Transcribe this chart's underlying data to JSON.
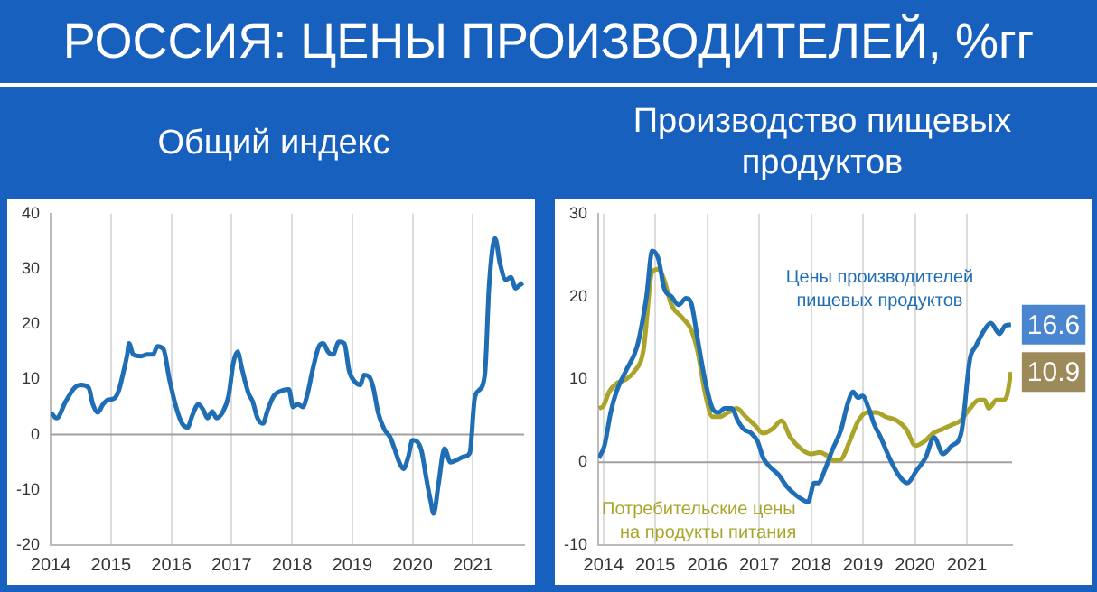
{
  "chart_data": [
    {
      "type": "line",
      "title": "РОССИЯ: ЦЕНЫ ПРОИЗВОДИТЕЛЕЙ, %гг",
      "subtitle": "Общий индекс",
      "xlim": [
        2014,
        2021.85
      ],
      "xticks": [
        2014,
        2015,
        2016,
        2017,
        2018,
        2019,
        2020,
        2021
      ],
      "ylim": [
        -20,
        40
      ],
      "yticks": [
        -20,
        -10,
        0,
        10,
        20,
        30,
        40
      ],
      "grid": "x",
      "marker": "none",
      "ref_lines": [
        {
          "axis": "y",
          "value": 0,
          "color": "#a0a0a0"
        }
      ],
      "series": [
        {
          "color": "#1f6db5",
          "x": [
            2014,
            2014.1,
            2014.25,
            2014.4,
            2014.5,
            2014.63,
            2014.7,
            2014.78,
            2014.87,
            2014.95,
            2015.05,
            2015.13,
            2015.2,
            2015.27,
            2015.3,
            2015.37,
            2015.5,
            2015.6,
            2015.7,
            2015.77,
            2015.87,
            2015.97,
            2016.08,
            2016.18,
            2016.27,
            2016.35,
            2016.45,
            2016.53,
            2016.6,
            2016.68,
            2016.75,
            2016.85,
            2016.95,
            2017.03,
            2017.1,
            2017.17,
            2017.28,
            2017.35,
            2017.43,
            2017.52,
            2017.6,
            2017.7,
            2017.85,
            2017.95,
            2018.02,
            2018.1,
            2018.18,
            2018.25,
            2018.35,
            2018.45,
            2018.52,
            2018.6,
            2018.68,
            2018.78,
            2018.87,
            2018.95,
            2019.05,
            2019.13,
            2019.2,
            2019.28,
            2019.35,
            2019.43,
            2019.53,
            2019.63,
            2019.7,
            2019.78,
            2019.85,
            2019.93,
            2020,
            2020.07,
            2020.15,
            2020.23,
            2020.3,
            2020.35,
            2020.43,
            2020.53,
            2020.63,
            2020.75,
            2020.85,
            2020.95,
            2021.03,
            2021.1,
            2021.2,
            2021.27,
            2021.37,
            2021.45,
            2021.55,
            2021.63,
            2021.71,
            2021.77,
            2021.83
          ],
          "values": [
            4,
            3,
            6,
            8.5,
            9,
            8.5,
            5.5,
            4,
            5.5,
            6.3,
            6.5,
            8,
            11,
            14.5,
            16.5,
            14.5,
            14.2,
            14.5,
            14.5,
            16,
            15.5,
            10,
            5,
            2,
            1.3,
            3.5,
            5.5,
            4.5,
            3,
            4.2,
            3,
            4,
            7,
            13,
            15,
            12,
            7.5,
            6,
            3,
            2,
            4.5,
            7,
            8,
            8.2,
            5,
            5.5,
            5,
            7,
            12,
            16,
            16.5,
            15,
            14.5,
            16.8,
            16.5,
            11.5,
            9.5,
            9,
            10.8,
            10.5,
            8.5,
            4,
            1,
            -0.5,
            -2.5,
            -5,
            -6.2,
            -4,
            -1,
            -1.2,
            -3,
            -8,
            -12,
            -14.3,
            -9,
            -2.5,
            -5,
            -4.5,
            -4,
            -3.3,
            6.5,
            8,
            11,
            27,
            35.5,
            31,
            28,
            28.5,
            26.5,
            27,
            27.5
          ]
        }
      ]
    },
    {
      "type": "line",
      "title": "Производство пищевых продуктов",
      "xlim": [
        2013.9,
        2021.87
      ],
      "xticks": [
        2014,
        2015,
        2016,
        2017,
        2018,
        2019,
        2020,
        2021
      ],
      "ylim": [
        -10,
        30
      ],
      "yticks": [
        -10,
        0,
        10,
        20,
        30
      ],
      "grid": "x",
      "marker": "none",
      "ref_lines": [
        {
          "axis": "y",
          "value": 0,
          "color": "#a0a0a0"
        }
      ],
      "annotations": [
        {
          "text": "16.6",
          "x": 2021.85,
          "y": 16.6
        },
        {
          "text": "10.9",
          "x": 2021.85,
          "y": 10.9
        }
      ],
      "series": [
        {
          "name": "Цены производителей пищевых продуктов",
          "color": "#1f6db5",
          "x": [
            2013.91,
            2014.02,
            2014.14,
            2014.25,
            2014.43,
            2014.65,
            2014.83,
            2014.94,
            2015.06,
            2015.17,
            2015.31,
            2015.45,
            2015.59,
            2015.7,
            2015.81,
            2015.97,
            2016.1,
            2016.22,
            2016.33,
            2016.47,
            2016.59,
            2016.7,
            2016.85,
            2016.97,
            2017.08,
            2017.2,
            2017.37,
            2017.54,
            2017.71,
            2017.83,
            2017.94,
            2018.06,
            2018.14,
            2018.26,
            2018.41,
            2018.58,
            2018.7,
            2018.81,
            2018.9,
            2018.99,
            2019.11,
            2019.22,
            2019.34,
            2019.51,
            2019.68,
            2019.85,
            2020.03,
            2020.2,
            2020.37,
            2020.54,
            2020.71,
            2020.89,
            2021.06,
            2021.17,
            2021.34,
            2021.46,
            2021.63,
            2021.74,
            2021.85
          ],
          "values": [
            0.5,
            2,
            6,
            8.5,
            11,
            14,
            20,
            25.5,
            24.5,
            21,
            20,
            19,
            19.8,
            19,
            15,
            9.5,
            6.5,
            6,
            6.5,
            6.5,
            5,
            4,
            3.5,
            2.5,
            0.5,
            -0.5,
            -1.5,
            -3,
            -4,
            -4.5,
            -4.8,
            -2.5,
            -2.5,
            -1,
            1.5,
            4,
            7,
            8.5,
            7.8,
            8,
            6.5,
            4.5,
            3,
            0.5,
            -1.5,
            -2.5,
            -1,
            0.5,
            3,
            1,
            2,
            3.5,
            12.5,
            14,
            16,
            16.8,
            15.5,
            16.5,
            16.6
          ]
        },
        {
          "name": "Потребительские цены на продукты питания",
          "color": "#aaa52a",
          "x": [
            2013.91,
            2014,
            2014.11,
            2014.25,
            2014.43,
            2014.6,
            2014.77,
            2014.94,
            2015.06,
            2015.17,
            2015.31,
            2015.51,
            2015.69,
            2015.81,
            2015.97,
            2016.1,
            2016.25,
            2016.4,
            2016.57,
            2016.74,
            2016.91,
            2017.08,
            2017.25,
            2017.43,
            2017.6,
            2017.83,
            2018,
            2018.17,
            2018.31,
            2018.45,
            2018.57,
            2018.74,
            2018.91,
            2019.08,
            2019.26,
            2019.43,
            2019.66,
            2019.83,
            2020.01,
            2020.18,
            2020.35,
            2020.53,
            2020.7,
            2020.87,
            2021.06,
            2021.23,
            2021.34,
            2021.42,
            2021.57,
            2021.69,
            2021.77,
            2021.85
          ],
          "values": [
            6.5,
            6.8,
            8.5,
            9.5,
            10,
            11,
            13.5,
            23,
            23.3,
            22,
            19,
            17.5,
            16,
            13.5,
            8,
            5.5,
            5.5,
            6,
            6.5,
            5.5,
            4.5,
            3.5,
            4,
            5,
            3,
            1.5,
            1,
            1.2,
            0.8,
            0.2,
            0.3,
            2.5,
            5,
            6,
            6,
            5.5,
            5,
            4,
            2,
            2.5,
            3.5,
            4,
            4.5,
            5,
            6.5,
            7.5,
            7.5,
            6.5,
            7.5,
            7.5,
            8,
            10.9
          ]
        }
      ]
    }
  ]
}
